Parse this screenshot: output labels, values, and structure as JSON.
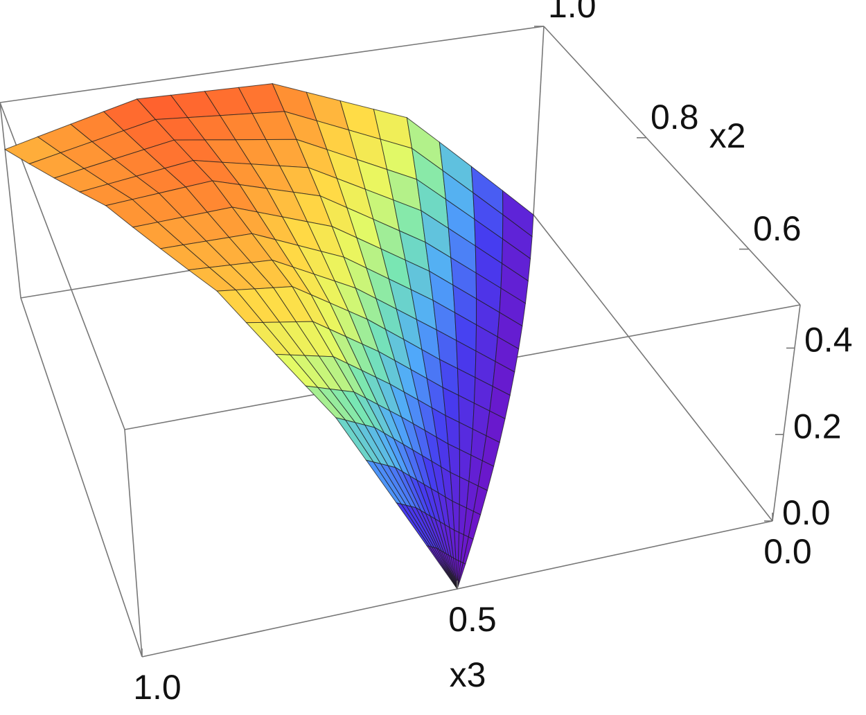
{
  "chart_data": {
    "type": "surface3d",
    "x_label": "x3",
    "y_label": "x2",
    "xlim": [
      0,
      1
    ],
    "ylim": [
      0.5,
      1
    ],
    "zlim": [
      0,
      0.5
    ],
    "xticks": [
      {
        "value": 1,
        "label": "1.0"
      },
      0.5,
      {
        "value": 0,
        "label": "0.0"
      }
    ],
    "yticks": [
      0.6,
      0.8,
      {
        "value": 1,
        "label": "1.0"
      }
    ],
    "zticks": [
      {
        "value": 0,
        "label": "0.0"
      },
      0.2,
      0.4
    ],
    "colormap": "rainbow",
    "mesh": true,
    "surface": {
      "y": [
        1,
        0.875,
        0.75,
        0.625,
        0.5
      ],
      "x": [
        [
          1,
          0.75,
          0.5,
          0.25,
          0
        ],
        [
          0.875,
          0.6875,
          0.5,
          0.3125,
          0.125
        ],
        [
          0.75,
          0.625,
          0.5,
          0.375,
          0.25
        ],
        [
          0.625,
          0.5625,
          0.5,
          0.4375,
          0.375
        ],
        [
          0.5,
          0.5,
          0.5,
          0.5,
          0.5
        ]
      ],
      "z": [
        [
          0.38,
          0.46,
          0.45,
          0.31,
          0
        ],
        [
          0.42,
          0.44,
          0.36,
          0.2,
          0
        ],
        [
          0.38,
          0.36,
          0.25,
          0.12,
          0
        ],
        [
          0.24,
          0.2,
          0.13,
          0.06,
          0
        ],
        [
          0,
          0,
          0,
          0,
          0
        ]
      ]
    }
  }
}
